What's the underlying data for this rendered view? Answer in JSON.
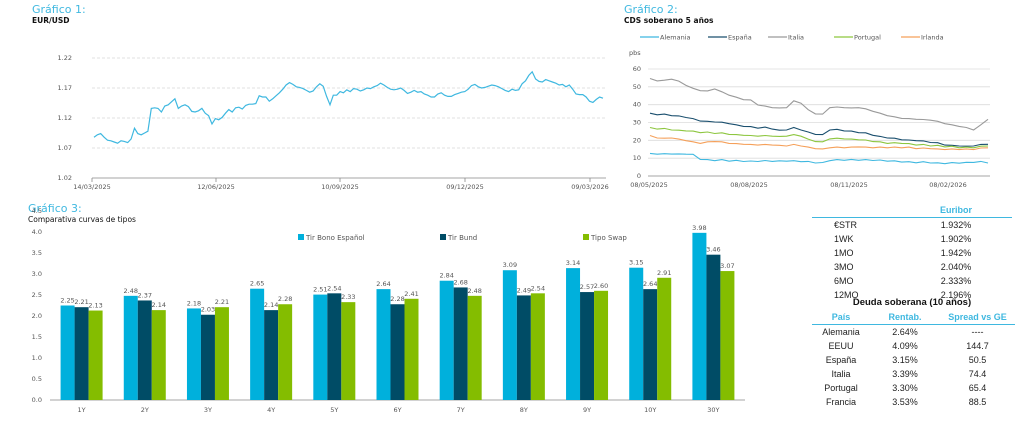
{
  "chart_data": [
    {
      "type": "line",
      "label": "Gráfico 1:",
      "title": "EUR/USD",
      "xlabel": "",
      "ylabel": "",
      "ylim": [
        1.02,
        1.22
      ],
      "yticks": [
        "1.02",
        "1.07",
        "1.12",
        "1.17",
        "1.22"
      ],
      "xticks": [
        "14/03/2025",
        "12/06/2025",
        "10/09/2025",
        "09/12/2025",
        "09/03/2026"
      ],
      "grid": true,
      "series": [
        {
          "name": "EUR/USD",
          "color": "#3fb8e0",
          "x_range": [
            "14/03/2025",
            "17/03/2026"
          ],
          "values": [
            1.088,
            1.092,
            1.094,
            1.088,
            1.083,
            1.082,
            1.08,
            1.078,
            1.082,
            1.081,
            1.079,
            1.085,
            1.103,
            1.094,
            1.092,
            1.095,
            1.098,
            1.136,
            1.137,
            1.136,
            1.13,
            1.14,
            1.142,
            1.147,
            1.152,
            1.136,
            1.14,
            1.142,
            1.139,
            1.131,
            1.13,
            1.132,
            1.136,
            1.128,
            1.124,
            1.11,
            1.119,
            1.117,
            1.121,
            1.128,
            1.134,
            1.13,
            1.137,
            1.138,
            1.135,
            1.141,
            1.143,
            1.143,
            1.144,
            1.157,
            1.155,
            1.155,
            1.148,
            1.152,
            1.157,
            1.162,
            1.168,
            1.175,
            1.179,
            1.176,
            1.172,
            1.171,
            1.169,
            1.166,
            1.163,
            1.165,
            1.172,
            1.177,
            1.173,
            1.156,
            1.142,
            1.158,
            1.158,
            1.164,
            1.162,
            1.167,
            1.164,
            1.169,
            1.168,
            1.165,
            1.167,
            1.17,
            1.169,
            1.172,
            1.174,
            1.178,
            1.175,
            1.171,
            1.168,
            1.167,
            1.168,
            1.17,
            1.166,
            1.161,
            1.163,
            1.166,
            1.163,
            1.164,
            1.16,
            1.158,
            1.155,
            1.155,
            1.16,
            1.162,
            1.158,
            1.156,
            1.156,
            1.159,
            1.161,
            1.163,
            1.164,
            1.168,
            1.174,
            1.176,
            1.172,
            1.17,
            1.171,
            1.173,
            1.175,
            1.174,
            1.172,
            1.169,
            1.166,
            1.164,
            1.168,
            1.166,
            1.167,
            1.177,
            1.182,
            1.191,
            1.197,
            1.185,
            1.181,
            1.18,
            1.184,
            1.182,
            1.18,
            1.178,
            1.175,
            1.176,
            1.172,
            1.175,
            1.168,
            1.16,
            1.159,
            1.159,
            1.155,
            1.148,
            1.146,
            1.151,
            1.155,
            1.153
          ]
        }
      ]
    },
    {
      "type": "line",
      "label": "Gráfico 2:",
      "title": "CDS soberano 5 años",
      "xlabel": "",
      "ylabel": "pbs",
      "ylim": [
        0,
        60
      ],
      "yticks": [
        "0",
        "10",
        "20",
        "30",
        "40",
        "50",
        "60"
      ],
      "xticks": [
        "08/05/2025",
        "08/08/2025",
        "08/11/2025",
        "08/02/2026"
      ],
      "grid": true,
      "legend": "top",
      "series": [
        {
          "name": "Alemania",
          "color": "#3fb8e0",
          "values": [
            12.5,
            12.4,
            12.3,
            12.5,
            12.2,
            12.4,
            12.0,
            9.5,
            9.0,
            8.8,
            9.0,
            8.5,
            8.6,
            8.3,
            8.2,
            8.3,
            8.5,
            8.4,
            8.3,
            8.5,
            8.4,
            8.2,
            8.0,
            7.5,
            7.4,
            8.8,
            9.0,
            9.0,
            9.1,
            9.0,
            9.0,
            8.9,
            8.8,
            8.5,
            8.3,
            8.0,
            7.8,
            7.6,
            7.8,
            7.5,
            7.2,
            7.1,
            7.3,
            7.4,
            7.5,
            7.8,
            8.0,
            7.5
          ]
        },
        {
          "name": "España",
          "color": "#1a4f6e",
          "values": [
            35.0,
            34.5,
            34.5,
            34.0,
            33.5,
            33.0,
            32.0,
            31.0,
            30.5,
            30.5,
            30.0,
            29.5,
            28.5,
            28.0,
            27.5,
            27.0,
            27.2,
            26.5,
            25.5,
            26.0,
            27.0,
            26.0,
            24.5,
            23.5,
            23.0,
            26.0,
            26.0,
            25.5,
            25.0,
            24.5,
            24.0,
            23.0,
            22.0,
            21.5,
            21.0,
            20.5,
            20.0,
            20.0,
            19.5,
            19.0,
            18.5,
            17.5,
            17.0,
            17.0,
            16.5,
            17.0,
            17.5,
            18.0
          ]
        },
        {
          "name": "Italia",
          "color": "#9a9a9a",
          "values": [
            54.5,
            53.5,
            53.5,
            54.5,
            53.0,
            51.0,
            49.0,
            48.0,
            47.5,
            49.0,
            47.0,
            45.5,
            44.0,
            43.0,
            42.5,
            40.0,
            39.0,
            38.5,
            38.0,
            38.5,
            42.0,
            41.0,
            37.0,
            35.0,
            34.5,
            38.5,
            38.5,
            38.5,
            38.0,
            38.5,
            37.5,
            36.5,
            35.0,
            34.0,
            33.0,
            32.5,
            32.0,
            32.0,
            31.5,
            31.5,
            30.5,
            29.5,
            28.5,
            28.0,
            27.0,
            26.0,
            28.5,
            32.0
          ]
        },
        {
          "name": "Portugal",
          "color": "#8dc63f",
          "values": [
            27.0,
            26.5,
            26.5,
            26.0,
            25.5,
            25.5,
            25.0,
            24.5,
            24.5,
            24.0,
            24.0,
            23.5,
            23.0,
            23.0,
            22.5,
            22.5,
            22.5,
            22.5,
            22.0,
            22.5,
            23.0,
            22.5,
            20.5,
            19.5,
            19.0,
            21.0,
            21.0,
            21.0,
            20.5,
            20.5,
            20.0,
            19.5,
            19.0,
            18.5,
            18.5,
            18.5,
            18.0,
            17.5,
            17.5,
            17.0,
            17.0,
            16.5,
            16.5,
            16.0,
            16.0,
            16.0,
            16.5,
            17.0
          ]
        },
        {
          "name": "Irlanda",
          "color": "#f5a05a",
          "values": [
            22.5,
            21.5,
            21.0,
            21.5,
            20.5,
            20.0,
            19.0,
            18.5,
            19.0,
            19.5,
            19.0,
            18.5,
            18.0,
            18.0,
            17.5,
            17.5,
            17.5,
            17.5,
            17.0,
            17.0,
            17.5,
            17.0,
            16.0,
            15.5,
            15.0,
            16.0,
            16.0,
            16.0,
            16.0,
            16.5,
            16.0,
            16.0,
            16.0,
            16.0,
            16.0,
            16.0,
            16.0,
            15.5,
            15.5,
            15.5,
            15.0,
            15.0,
            15.0,
            15.0,
            15.0,
            15.0,
            15.5,
            16.0
          ]
        }
      ]
    },
    {
      "type": "bar",
      "label": "Gráfico 3:",
      "title": "Comparativa curvas de tipos",
      "xlabel": "",
      "ylabel": "",
      "ylim": [
        0,
        4.5
      ],
      "yticks": [
        "0.0",
        "0.5",
        "1.0",
        "1.5",
        "2.0",
        "2.5",
        "3.0",
        "3.5",
        "4.0",
        "4.5"
      ],
      "grid": false,
      "legend": "top-center",
      "categories": [
        "1Y",
        "2Y",
        "3Y",
        "4Y",
        "5Y",
        "6Y",
        "7Y",
        "8Y",
        "9Y",
        "10Y",
        "30Y"
      ],
      "series": [
        {
          "name": "Tir Bono Español",
          "color": "#00b0dc",
          "values": [
            2.25,
            2.48,
            2.18,
            2.65,
            2.51,
            2.64,
            2.84,
            3.09,
            3.14,
            3.15,
            3.98
          ],
          "labels": [
            "2.25",
            "2.48",
            "2.18",
            "2.65",
            "2.51",
            "2.64",
            "2.84",
            "3.09",
            "3.14",
            "3.15",
            "3.98"
          ]
        },
        {
          "name": "Tir Bund",
          "color": "#004c66",
          "values": [
            2.21,
            2.37,
            2.03,
            2.14,
            2.54,
            2.28,
            2.68,
            2.49,
            2.57,
            2.64,
            3.46
          ],
          "labels": [
            "2.21",
            "2.37",
            "2.03",
            "2.14",
            "2.54",
            "2.28",
            "2.68",
            "2.49",
            "2.57",
            "2.64",
            "3.46"
          ]
        },
        {
          "name": "Tipo Swap",
          "color": "#84bd00",
          "values": [
            2.13,
            2.14,
            2.21,
            2.28,
            2.33,
            2.41,
            2.48,
            2.54,
            2.6,
            2.91,
            3.07
          ],
          "labels": [
            "2.13",
            "2.14",
            "2.21",
            "2.28",
            "2.33",
            "2.41",
            "2.48",
            "2.54",
            "2.60",
            "2.91",
            "3.07"
          ]
        }
      ]
    }
  ],
  "euribor": {
    "header": "Euribor",
    "rows": [
      {
        "term": "€STR",
        "value": "1.932%"
      },
      {
        "term": "1WK",
        "value": "1.902%"
      },
      {
        "term": "1MO",
        "value": "1.942%"
      },
      {
        "term": "3MO",
        "value": "2.040%"
      },
      {
        "term": "6MO",
        "value": "2.333%"
      },
      {
        "term": "12MO",
        "value": "2.196%"
      }
    ]
  },
  "deuda": {
    "title": "Deuda soberana (10 años)",
    "headers": [
      "País",
      "Rentab.",
      "Spread vs GE"
    ],
    "rows": [
      {
        "pais": "Alemania",
        "rentab": "2.64%",
        "spread": "----"
      },
      {
        "pais": "EEUU",
        "rentab": "4.09%",
        "spread": "144.7"
      },
      {
        "pais": "España",
        "rentab": "3.15%",
        "spread": "50.5"
      },
      {
        "pais": "Italia",
        "rentab": "3.39%",
        "spread": "74.4"
      },
      {
        "pais": "Portugal",
        "rentab": "3.30%",
        "spread": "65.4"
      },
      {
        "pais": "Francia",
        "rentab": "3.53%",
        "spread": "88.5"
      }
    ]
  }
}
